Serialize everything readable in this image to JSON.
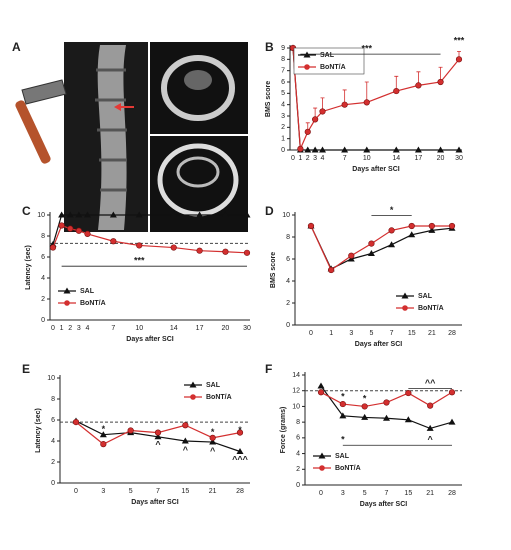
{
  "image_panel": {
    "label": "A"
  },
  "chart_data": [
    {
      "type": "line",
      "panel": "B",
      "ylabel": "BMS score",
      "xlabel": "Days after SCI",
      "categories": [
        "0",
        "1",
        "2",
        "3",
        "4",
        "7",
        "10",
        "14",
        "17",
        "20",
        "30"
      ],
      "ylim": [
        0,
        9
      ],
      "yticks": [
        0,
        1,
        2,
        3,
        4,
        5,
        6,
        7,
        8,
        9
      ],
      "legend": "upper left",
      "annotations": [
        "***",
        "***"
      ],
      "series": [
        {
          "name": "SAL",
          "color": "#111111",
          "marker": "triangle",
          "values": [
            9,
            0,
            0,
            0,
            0,
            0,
            0,
            0,
            0,
            0,
            0
          ]
        },
        {
          "name": "BoNT/A",
          "color": "#d32f2f",
          "marker": "circle",
          "values": [
            9,
            0.1,
            1.6,
            2.7,
            3.4,
            4.0,
            4.2,
            5.2,
            5.7,
            6.0,
            8.0
          ],
          "errors": [
            0,
            0,
            0.8,
            1.0,
            1.2,
            1.3,
            1.8,
            1.3,
            1.2,
            1.3,
            0.7
          ]
        }
      ]
    },
    {
      "type": "line",
      "panel": "C",
      "ylabel": "Latency (sec)",
      "xlabel": "Days after SCI",
      "categories": [
        "0",
        "1",
        "2",
        "3",
        "4",
        "7",
        "10",
        "14",
        "17",
        "20",
        "30"
      ],
      "ylim": [
        0,
        10
      ],
      "yticks": [
        0,
        2,
        4,
        6,
        8,
        10
      ],
      "legend": "lower left",
      "reference_line": 7.3,
      "annotations": [
        "***"
      ],
      "series": [
        {
          "name": "SAL",
          "color": "#111111",
          "marker": "triangle",
          "values": [
            7.2,
            10,
            10,
            10,
            10,
            10,
            10,
            10,
            10,
            10,
            10
          ]
        },
        {
          "name": "BoNT/A",
          "color": "#d32f2f",
          "marker": "circle",
          "values": [
            6.9,
            9.0,
            8.7,
            8.5,
            8.2,
            7.5,
            7.1,
            6.9,
            6.6,
            6.5,
            6.4
          ]
        }
      ]
    },
    {
      "type": "line",
      "panel": "D",
      "ylabel": "BMS score",
      "xlabel": "Days after SCI",
      "categories": [
        "0",
        "1",
        "3",
        "5",
        "7",
        "15",
        "21",
        "28"
      ],
      "ylim": [
        0,
        10
      ],
      "yticks": [
        0,
        2,
        4,
        6,
        8,
        10
      ],
      "legend": "lower right",
      "annotations": [
        "*"
      ],
      "series": [
        {
          "name": "SAL",
          "color": "#111111",
          "marker": "triangle",
          "values": [
            9,
            5.1,
            6.0,
            6.5,
            7.3,
            8.2,
            8.6,
            8.8
          ]
        },
        {
          "name": "BoNT/A",
          "color": "#d32f2f",
          "marker": "circle",
          "values": [
            9,
            5.0,
            6.3,
            7.4,
            8.6,
            9.0,
            9.0,
            9.0
          ]
        }
      ]
    },
    {
      "type": "line",
      "panel": "E",
      "ylabel": "Latency (sec)",
      "xlabel": "Days after SCI",
      "categories": [
        "0",
        "3",
        "5",
        "7",
        "15",
        "21",
        "28"
      ],
      "ylim": [
        0,
        10
      ],
      "yticks": [
        0,
        2,
        4,
        6,
        8,
        10
      ],
      "legend": "upper right",
      "reference_line": 5.8,
      "annotations": [
        "*",
        "^",
        "^",
        "^",
        "^^^",
        "*",
        "*"
      ],
      "series": [
        {
          "name": "SAL",
          "color": "#111111",
          "marker": "triangle",
          "values": [
            5.9,
            4.6,
            4.8,
            4.4,
            4.0,
            3.9,
            3.0
          ]
        },
        {
          "name": "BoNT/A",
          "color": "#d32f2f",
          "marker": "circle",
          "values": [
            5.8,
            3.7,
            5.0,
            4.8,
            5.5,
            4.3,
            4.8
          ]
        }
      ]
    },
    {
      "type": "line",
      "panel": "F",
      "ylabel": "Force (grams)",
      "xlabel": "Days after SCI",
      "categories": [
        "0",
        "3",
        "5",
        "7",
        "15",
        "21",
        "28"
      ],
      "ylim": [
        0,
        14
      ],
      "yticks": [
        0,
        2,
        4,
        6,
        8,
        10,
        12,
        14
      ],
      "legend": "lower left",
      "reference_line": 12,
      "annotations": [
        "*",
        "^",
        "^^",
        "*",
        "*"
      ],
      "series": [
        {
          "name": "SAL",
          "color": "#111111",
          "marker": "triangle",
          "values": [
            12.6,
            8.8,
            8.6,
            8.5,
            8.3,
            7.2,
            8.0
          ]
        },
        {
          "name": "BoNT/A",
          "color": "#d32f2f",
          "marker": "circle",
          "values": [
            11.8,
            10.3,
            10.0,
            10.5,
            11.7,
            10.1,
            11.8
          ]
        }
      ]
    }
  ]
}
